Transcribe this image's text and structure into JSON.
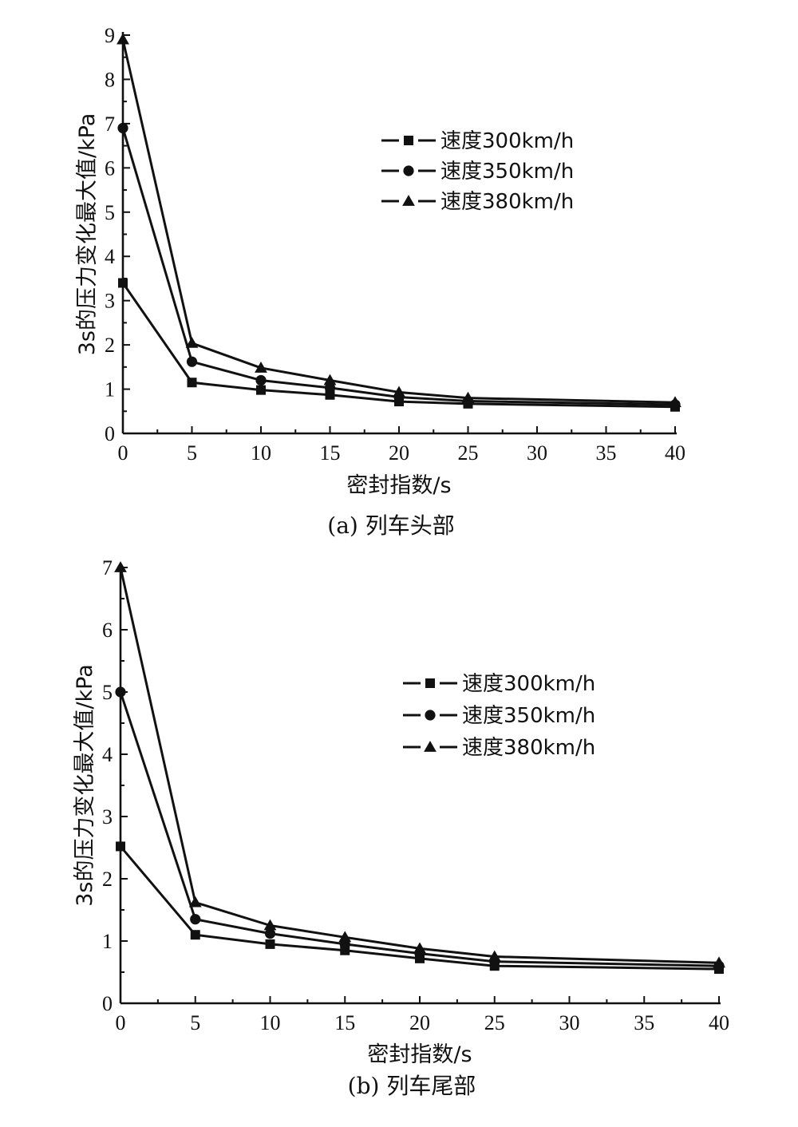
{
  "chart_data": [
    {
      "type": "line",
      "caption": "(a) 列车头部",
      "xlabel": "密封指数/s",
      "ylabel": "3s的压力变化最大值/kPa",
      "xlim": [
        0,
        40
      ],
      "ylim": [
        0,
        9
      ],
      "x_ticks": [
        "0",
        "5",
        "10",
        "15",
        "20",
        "25",
        "30",
        "35",
        "40"
      ],
      "y_ticks": [
        "0",
        "1",
        "2",
        "3",
        "4",
        "5",
        "6",
        "7",
        "8",
        "9"
      ],
      "x": [
        0,
        5,
        10,
        15,
        20,
        25,
        40
      ],
      "legend_position": "top-right",
      "series": [
        {
          "name": "速度300km/h",
          "marker": "square",
          "values": [
            3.4,
            1.15,
            0.98,
            0.87,
            0.72,
            0.67,
            0.6
          ]
        },
        {
          "name": "速度350km/h",
          "marker": "circle",
          "values": [
            6.9,
            1.62,
            1.2,
            1.03,
            0.82,
            0.73,
            0.65
          ]
        },
        {
          "name": "速度380km/h",
          "marker": "triangle",
          "values": [
            8.9,
            2.04,
            1.48,
            1.2,
            0.93,
            0.8,
            0.7
          ]
        }
      ]
    },
    {
      "type": "line",
      "caption": "(b) 列车尾部",
      "xlabel": "密封指数/s",
      "ylabel": "3s的压力变化最大值/kPa",
      "xlim": [
        0,
        40
      ],
      "ylim": [
        0,
        7
      ],
      "x_ticks": [
        "0",
        "5",
        "10",
        "15",
        "20",
        "25",
        "30",
        "35",
        "40"
      ],
      "y_ticks": [
        "0",
        "1",
        "2",
        "3",
        "4",
        "5",
        "6",
        "7"
      ],
      "x": [
        0,
        5,
        10,
        15,
        20,
        25,
        40
      ],
      "legend_position": "top-right",
      "series": [
        {
          "name": "速度300km/h",
          "marker": "square",
          "values": [
            2.52,
            1.1,
            0.95,
            0.85,
            0.72,
            0.6,
            0.55
          ]
        },
        {
          "name": "速度350km/h",
          "marker": "circle",
          "values": [
            5.0,
            1.35,
            1.12,
            0.95,
            0.8,
            0.67,
            0.6
          ]
        },
        {
          "name": "速度380km/h",
          "marker": "triangle",
          "values": [
            7.0,
            1.62,
            1.25,
            1.06,
            0.88,
            0.75,
            0.65
          ]
        }
      ]
    }
  ]
}
